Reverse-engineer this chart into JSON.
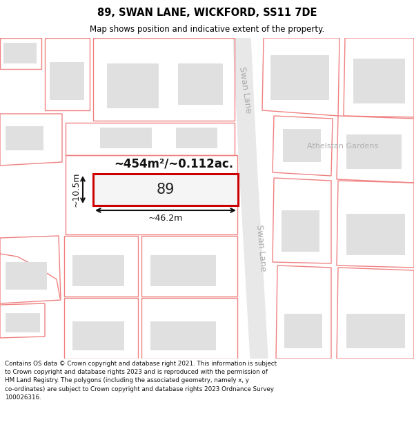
{
  "title": "89, SWAN LANE, WICKFORD, SS11 7DE",
  "subtitle": "Map shows position and indicative extent of the property.",
  "footer": "Contains OS data © Crown copyright and database right 2021. This information is subject\nto Crown copyright and database rights 2023 and is reproduced with the permission of\nHM Land Registry. The polygons (including the associated geometry, namely x, y\nco-ordinates) are subject to Crown copyright and database rights 2023 Ordnance Survey\n100026316.",
  "map_bg": "#ffffff",
  "plot_outline_color": "#f08080",
  "highlight_outline_color": "#cc0000",
  "building_fill": "#e0e0e0",
  "road_fill": "#e8e8e8",
  "street_label_upper": "Swan Lane",
  "street_label_lower": "Swan Lane",
  "street_label_athelstan": "Athelstan Gardens",
  "property_label": "89",
  "area_label": "~454m²/~0.112ac.",
  "width_label": "~46.2m",
  "height_label": "~10.5m"
}
